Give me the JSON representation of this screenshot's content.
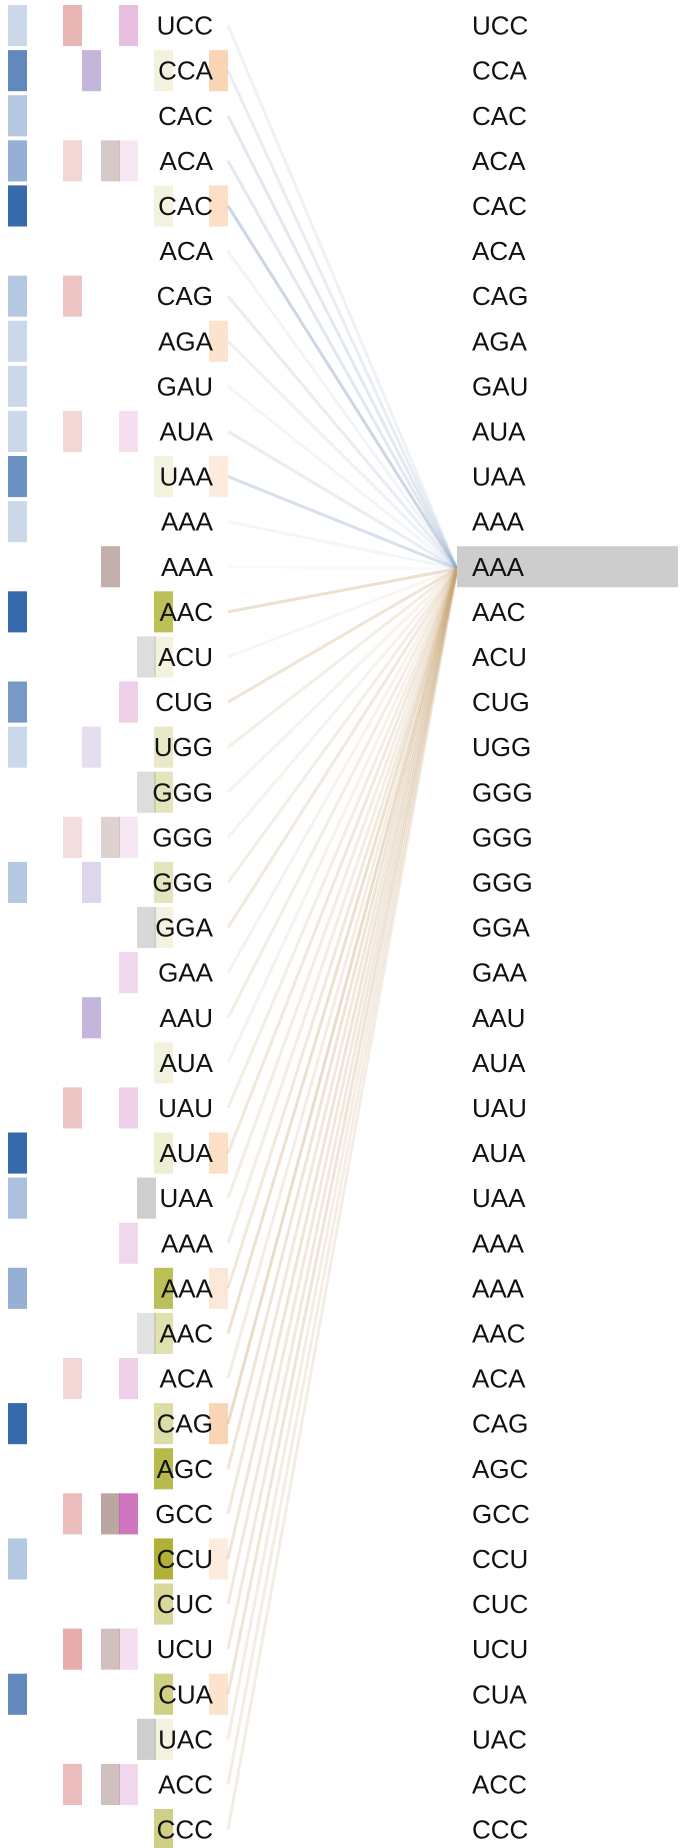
{
  "palette": {
    "c0": "#2c62a8",
    "c1": "#cf5a5a",
    "c2": "#7b5cb0",
    "c3": "#7a4d44",
    "c4": "#c75fb3",
    "c5": "#a7a920",
    "c6": "#9e9e9e",
    "c7": "#f5a25a",
    "highlight": "#cdcdcd",
    "line_blue": "#8da4c4",
    "line_tan": "#c9a776"
  },
  "selected_index": 12,
  "tokens": [
    {
      "text": "UCC",
      "cells": [
        0.25,
        0.45,
        0,
        0,
        0.4,
        0,
        0,
        0
      ]
    },
    {
      "text": "CCA",
      "cells": [
        0.75,
        0,
        0.45,
        0,
        0,
        0.15,
        0,
        0.45
      ]
    },
    {
      "text": "CAC",
      "cells": [
        0.35,
        0,
        0,
        0,
        0,
        0,
        0,
        0
      ]
    },
    {
      "text": "ACA",
      "cells": [
        0.5,
        0.25,
        0,
        0.3,
        0.15,
        0,
        0,
        0
      ]
    },
    {
      "text": "CAC",
      "cells": [
        0.95,
        0,
        0,
        0,
        0,
        0.15,
        0,
        0.35
      ]
    },
    {
      "text": "ACA",
      "cells": [
        0,
        0,
        0,
        0,
        0,
        0,
        0,
        0
      ]
    },
    {
      "text": "CAG",
      "cells": [
        0.35,
        0.35,
        0,
        0,
        0,
        0,
        0,
        0
      ]
    },
    {
      "text": "AGA",
      "cells": [
        0.25,
        0,
        0,
        0,
        0,
        0,
        0,
        0.3
      ]
    },
    {
      "text": "GAU",
      "cells": [
        0.25,
        0,
        0,
        0,
        0,
        0,
        0,
        0
      ]
    },
    {
      "text": "AUA",
      "cells": [
        0.25,
        0.25,
        0,
        0,
        0.2,
        0,
        0,
        0
      ]
    },
    {
      "text": "UAA",
      "cells": [
        0.7,
        0,
        0,
        0,
        0,
        0.15,
        0,
        0.2
      ]
    },
    {
      "text": "AAA",
      "cells": [
        0.25,
        0,
        0,
        0,
        0,
        0,
        0,
        0
      ]
    },
    {
      "text": "AAA",
      "cells": [
        0,
        0,
        0,
        0.45,
        0,
        0,
        0,
        0
      ]
    },
    {
      "text": "AAC",
      "cells": [
        0.95,
        0,
        0,
        0,
        0,
        0.75,
        0,
        0
      ]
    },
    {
      "text": "ACU",
      "cells": [
        0,
        0,
        0,
        0,
        0,
        0.15,
        0.35,
        0
      ]
    },
    {
      "text": "CUG",
      "cells": [
        0.65,
        0,
        0,
        0,
        0.3,
        0,
        0,
        0
      ]
    },
    {
      "text": "UGG",
      "cells": [
        0.25,
        0,
        0.2,
        0,
        0,
        0.25,
        0,
        0
      ]
    },
    {
      "text": "GGG",
      "cells": [
        0,
        0,
        0,
        0,
        0,
        0.3,
        0.35,
        0
      ]
    },
    {
      "text": "GGG",
      "cells": [
        0,
        0.2,
        0,
        0.25,
        0.15,
        0,
        0,
        0
      ]
    },
    {
      "text": "GGG",
      "cells": [
        0.35,
        0,
        0.25,
        0,
        0,
        0.3,
        0,
        0
      ]
    },
    {
      "text": "GGA",
      "cells": [
        0,
        0,
        0,
        0,
        0,
        0.15,
        0.4,
        0
      ]
    },
    {
      "text": "GAA",
      "cells": [
        0,
        0,
        0,
        0,
        0.25,
        0,
        0,
        0
      ]
    },
    {
      "text": "AAU",
      "cells": [
        0,
        0,
        0.45,
        0,
        0,
        0,
        0,
        0
      ]
    },
    {
      "text": "AUA",
      "cells": [
        0,
        0,
        0,
        0,
        0,
        0.15,
        0,
        0
      ]
    },
    {
      "text": "UAU",
      "cells": [
        0,
        0.35,
        0,
        0,
        0.3,
        0,
        0,
        0
      ]
    },
    {
      "text": "AUA",
      "cells": [
        0.95,
        0,
        0,
        0,
        0,
        0.2,
        0,
        0.35
      ]
    },
    {
      "text": "UAA",
      "cells": [
        0.4,
        0,
        0,
        0,
        0,
        0,
        0.5,
        0
      ]
    },
    {
      "text": "AAA",
      "cells": [
        0,
        0,
        0,
        0,
        0.25,
        0,
        0,
        0
      ]
    },
    {
      "text": "AAA",
      "cells": [
        0.5,
        0,
        0,
        0,
        0,
        0.75,
        0,
        0.25
      ]
    },
    {
      "text": "AAC",
      "cells": [
        0,
        0,
        0,
        0,
        0,
        0.35,
        0.3,
        0
      ]
    },
    {
      "text": "ACA",
      "cells": [
        0,
        0.25,
        0,
        0,
        0.3,
        0,
        0,
        0
      ]
    },
    {
      "text": "CAG",
      "cells": [
        0.95,
        0,
        0,
        0,
        0,
        0.4,
        0,
        0.45
      ]
    },
    {
      "text": "AGC",
      "cells": [
        0,
        0,
        0,
        0,
        0,
        0.8,
        0,
        0
      ]
    },
    {
      "text": "GCC",
      "cells": [
        0,
        0.4,
        0,
        0.5,
        0.85,
        0,
        0,
        0
      ]
    },
    {
      "text": "CCU",
      "cells": [
        0.35,
        0,
        0,
        0,
        0,
        0.9,
        0,
        0.2
      ]
    },
    {
      "text": "CUC",
      "cells": [
        0,
        0,
        0,
        0,
        0,
        0.45,
        0,
        0
      ]
    },
    {
      "text": "UCU",
      "cells": [
        0,
        0.5,
        0,
        0.35,
        0.2,
        0,
        0,
        0
      ]
    },
    {
      "text": "CUA",
      "cells": [
        0.75,
        0,
        0,
        0,
        0,
        0.55,
        0,
        0.3
      ]
    },
    {
      "text": "UAC",
      "cells": [
        0,
        0,
        0,
        0,
        0,
        0.15,
        0.5,
        0
      ]
    },
    {
      "text": "ACC",
      "cells": [
        0,
        0.4,
        0,
        0.35,
        0.25,
        0,
        0,
        0
      ]
    },
    {
      "text": "CCC",
      "cells": [
        0,
        0,
        0,
        0,
        0,
        0.55,
        0,
        0
      ]
    }
  ],
  "attention": [
    0.15,
    0.2,
    0.25,
    0.25,
    0.45,
    0.12,
    0.2,
    0.15,
    0.1,
    0.2,
    0.35,
    0.1,
    0.05,
    0.35,
    0.1,
    0.3,
    0.2,
    0.15,
    0.15,
    0.2,
    0.25,
    0.15,
    0.2,
    0.15,
    0.2,
    0.25,
    0.2,
    0.2,
    0.25,
    0.35,
    0.2,
    0.4,
    0.3,
    0.25,
    0.3,
    0.25,
    0.25,
    0.3,
    0.2,
    0.2,
    0.2
  ]
}
